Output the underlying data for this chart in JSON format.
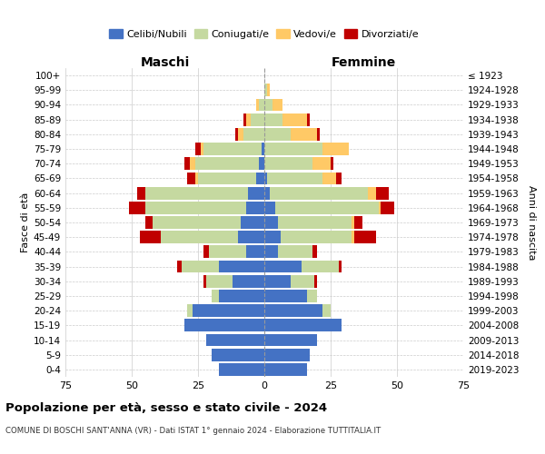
{
  "age_groups": [
    "0-4",
    "5-9",
    "10-14",
    "15-19",
    "20-24",
    "25-29",
    "30-34",
    "35-39",
    "40-44",
    "45-49",
    "50-54",
    "55-59",
    "60-64",
    "65-69",
    "70-74",
    "75-79",
    "80-84",
    "85-89",
    "90-94",
    "95-99",
    "100+"
  ],
  "birth_years": [
    "2019-2023",
    "2014-2018",
    "2009-2013",
    "2004-2008",
    "1999-2003",
    "1994-1998",
    "1989-1993",
    "1984-1988",
    "1979-1983",
    "1974-1978",
    "1969-1973",
    "1964-1968",
    "1959-1963",
    "1954-1958",
    "1949-1953",
    "1944-1948",
    "1939-1943",
    "1934-1938",
    "1929-1933",
    "1924-1928",
    "≤ 1923"
  ],
  "colors": {
    "celibe": "#4472C4",
    "coniugato": "#c5d9a0",
    "vedovo": "#ffc966",
    "divorziato": "#c00000"
  },
  "maschi": {
    "celibe": [
      17,
      20,
      22,
      30,
      27,
      17,
      12,
      17,
      7,
      10,
      9,
      7,
      6,
      3,
      2,
      1,
      0,
      0,
      0,
      0,
      0
    ],
    "coniugato": [
      0,
      0,
      0,
      0,
      2,
      3,
      10,
      14,
      14,
      29,
      33,
      38,
      39,
      22,
      24,
      22,
      8,
      5,
      2,
      0,
      0
    ],
    "vedovo": [
      0,
      0,
      0,
      0,
      0,
      0,
      0,
      0,
      0,
      0,
      0,
      0,
      0,
      1,
      2,
      1,
      2,
      2,
      1,
      0,
      0
    ],
    "divorziato": [
      0,
      0,
      0,
      0,
      0,
      0,
      1,
      2,
      2,
      8,
      3,
      6,
      3,
      3,
      2,
      2,
      1,
      1,
      0,
      0,
      0
    ]
  },
  "femmine": {
    "nubile": [
      16,
      17,
      20,
      29,
      22,
      16,
      10,
      14,
      5,
      6,
      5,
      4,
      2,
      1,
      0,
      0,
      0,
      0,
      0,
      0,
      0
    ],
    "coniugata": [
      0,
      0,
      0,
      0,
      3,
      4,
      9,
      14,
      13,
      27,
      28,
      39,
      37,
      21,
      18,
      22,
      10,
      7,
      3,
      1,
      0
    ],
    "vedova": [
      0,
      0,
      0,
      0,
      0,
      0,
      0,
      0,
      0,
      1,
      1,
      1,
      3,
      5,
      7,
      10,
      10,
      9,
      4,
      1,
      0
    ],
    "divorziata": [
      0,
      0,
      0,
      0,
      0,
      0,
      1,
      1,
      2,
      8,
      3,
      5,
      5,
      2,
      1,
      0,
      1,
      1,
      0,
      0,
      0
    ]
  },
  "title": "Popolazione per età, sesso e stato civile - 2024",
  "subtitle": "COMUNE DI BOSCHI SANT'ANNA (VR) - Dati ISTAT 1° gennaio 2024 - Elaborazione TUTTITALIA.IT",
  "xlim": 75,
  "background_color": "#ffffff",
  "grid_color": "#cccccc"
}
